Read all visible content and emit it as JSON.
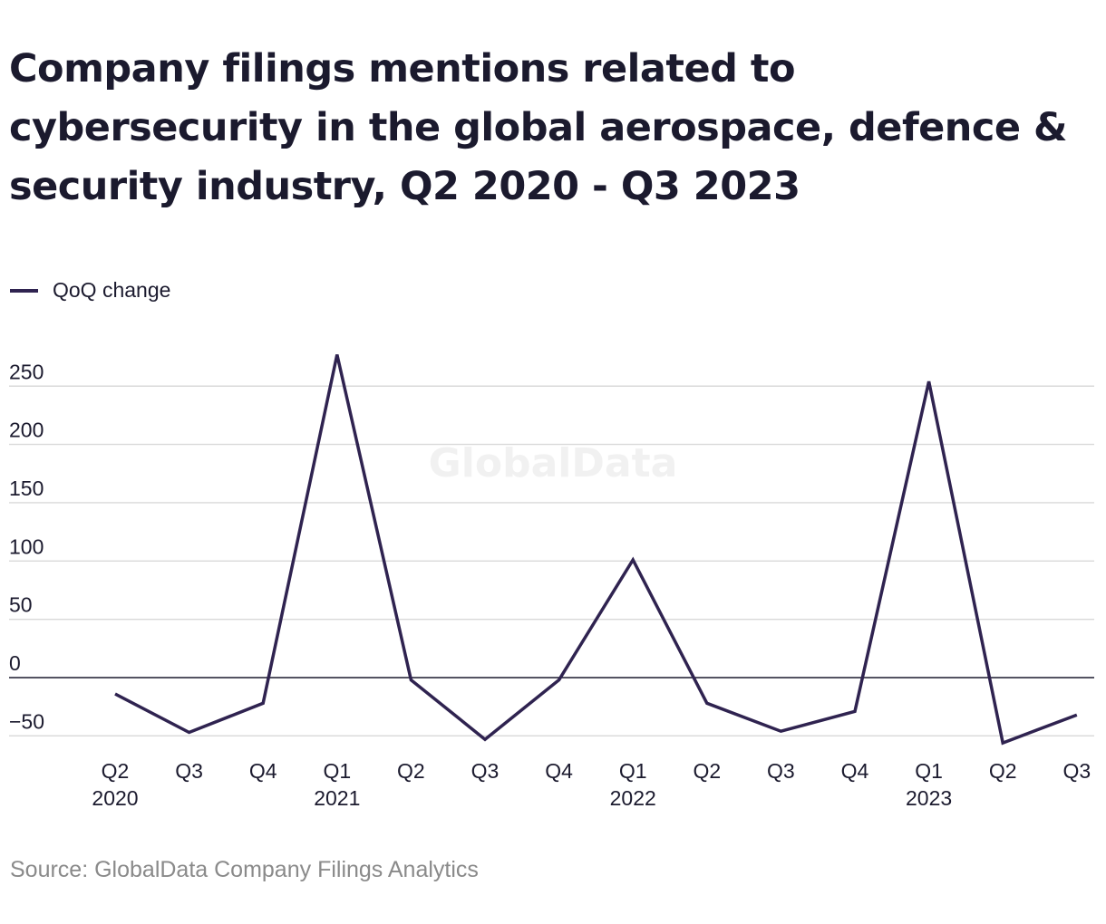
{
  "title": "Company filings mentions related to cybersecurity in the global aerospace, defence & security industry, Q2 2020 - Q3 2023",
  "legend": {
    "label": "QoQ change"
  },
  "watermark": "GlobalData",
  "source": "Source: GlobalData Company Filings Analytics",
  "colors": {
    "line": "#2f2350",
    "grid": "#d9d9d9",
    "zero": "#1b1a2e"
  },
  "chart_data": {
    "type": "line",
    "categories": [
      "Q2",
      "Q3",
      "Q4",
      "Q1",
      "Q2",
      "Q3",
      "Q4",
      "Q1",
      "Q2",
      "Q3",
      "Q4",
      "Q1",
      "Q2",
      "Q3"
    ],
    "years": [
      "2020",
      "",
      "",
      "2021",
      "",
      "",
      "",
      "2022",
      "",
      "",
      "",
      "2023",
      "",
      ""
    ],
    "series": [
      {
        "name": "QoQ change",
        "values": [
          -14,
          -47,
          -22,
          277,
          -2,
          -53,
          -2,
          101,
          -22,
          -46,
          -29,
          254,
          -56,
          -32
        ]
      }
    ],
    "y_ticks": [
      "250",
      "200",
      "150",
      "100",
      "50",
      "0",
      "−50"
    ],
    "ylim": [
      -50,
      250
    ],
    "grid": true,
    "legend_position": "top-left"
  }
}
